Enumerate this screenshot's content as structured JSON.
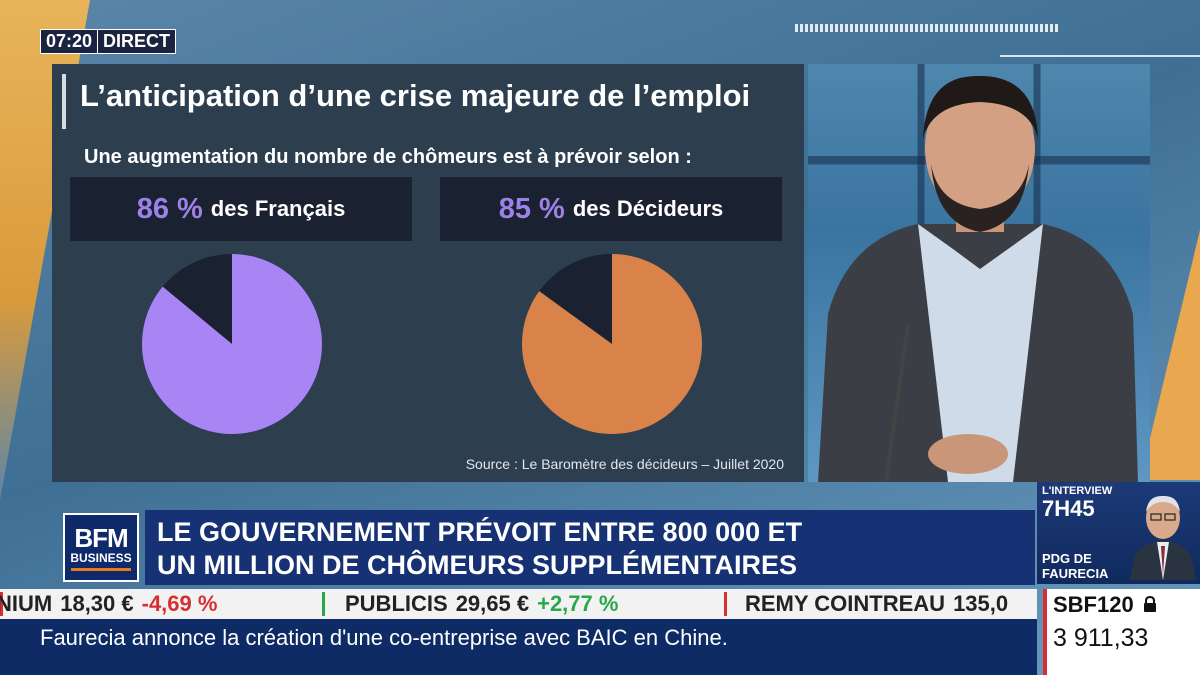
{
  "live": {
    "time": "07:20",
    "label": "DIRECT"
  },
  "panel": {
    "title": "L’anticipation d’une crise majeure de l’emploi",
    "subtitle": "Une augmentation du nombre de chômeurs est à prévoir selon :",
    "source": "Source : Le Baromètre des décideurs – Juillet 2020"
  },
  "chart_data": [
    {
      "type": "pie",
      "title": "86 % des Français",
      "categories": [
        "",
        ""
      ],
      "values": [
        86,
        14
      ],
      "colors": [
        "#a884f5",
        "#1a2130"
      ]
    },
    {
      "type": "pie",
      "title": "85 % des Décideurs",
      "categories": [
        "",
        ""
      ],
      "values": [
        85,
        15
      ],
      "colors": [
        "#d9834a",
        "#1a2130"
      ]
    }
  ],
  "stats": {
    "left": {
      "value": "86 %",
      "label": "des Français"
    },
    "right": {
      "value": "85 %",
      "label": "des Décideurs"
    }
  },
  "logo": {
    "line1": "BFM",
    "line2": "BUSINESS"
  },
  "headline": {
    "line1": "LE GOUVERNEMENT PRÉVOIT ENTRE 800 000 ET",
    "line2": "UN MILLION DE CHÔMEURS SUPPLÉMENTAIRES"
  },
  "interview": {
    "kicker": "L'INTERVIEW",
    "time": "7H45",
    "role_line1": "PDG DE",
    "role_line2": "FAURECIA"
  },
  "ticker": [
    {
      "name": "NIUM",
      "price": "18,30 €",
      "change": "-4,69 %",
      "direction": "down"
    },
    {
      "name": "PUBLICIS",
      "price": "29,65 €",
      "change": "+2,77 %",
      "direction": "up"
    },
    {
      "name": "REMY COINTREAU",
      "price": "135,0",
      "change": "",
      "direction": "down"
    }
  ],
  "index": {
    "name": "SBF120",
    "value": "3 911,33",
    "icon": "lock-icon"
  },
  "crawl": {
    "text": "Faurecia annonce la création d'une co-entreprise avec BAIC en Chine."
  },
  "colors": {
    "accent_purple": "#9d80e8",
    "pie_purple": "#a884f5",
    "pie_orange": "#d9834a",
    "navy": "#163275",
    "up": "#27a84a",
    "down": "#d62f2f"
  }
}
